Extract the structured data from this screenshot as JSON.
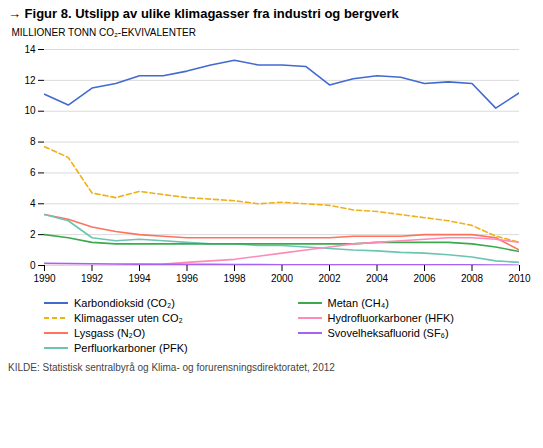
{
  "chart_data": {
    "type": "line",
    "title": "→ Figur 8. Utslipp av ulike klimagasser fra industri og bergverk",
    "ylabel": "MILLIONER TONN CO₂-EKVIVALENTER",
    "source": "KILDE: Statistisk sentralbyrå og Klima- og forurensningsdirektoratet, 2012",
    "x": [
      1990,
      1991,
      1992,
      1993,
      1994,
      1995,
      1996,
      1997,
      1998,
      1999,
      2000,
      2001,
      2002,
      2003,
      2004,
      2005,
      2006,
      2007,
      2008,
      2009,
      2010
    ],
    "series": [
      {
        "name": "Karbondioksid (CO₂)",
        "line_style": "solid",
        "values": [
          11.1,
          10.4,
          11.5,
          11.8,
          12.3,
          12.3,
          12.6,
          13.0,
          13.3,
          13.0,
          13.0,
          12.9,
          11.7,
          12.1,
          12.3,
          12.2,
          11.8,
          11.9,
          11.8,
          10.2,
          11.2
        ]
      },
      {
        "name": "Klimagasser uten CO₂",
        "line_style": "dashed",
        "values": [
          7.7,
          7.0,
          4.7,
          4.4,
          4.8,
          4.6,
          4.4,
          4.3,
          4.2,
          4.0,
          4.1,
          4.0,
          3.9,
          3.6,
          3.5,
          3.3,
          3.1,
          2.9,
          2.6,
          1.9,
          1.5
        ]
      },
      {
        "name": "Lysgass (N₂O)",
        "line_style": "solid",
        "values": [
          3.3,
          3.0,
          2.5,
          2.2,
          2.0,
          1.9,
          1.8,
          1.8,
          1.8,
          1.8,
          1.8,
          1.8,
          1.8,
          1.9,
          1.9,
          1.9,
          2.0,
          2.0,
          2.0,
          1.8,
          1.0
        ]
      },
      {
        "name": "Perfluorkarboner (PFK)",
        "line_style": "solid",
        "values": [
          3.3,
          2.9,
          1.8,
          1.6,
          1.7,
          1.6,
          1.5,
          1.4,
          1.4,
          1.3,
          1.3,
          1.2,
          1.1,
          1.0,
          0.95,
          0.85,
          0.8,
          0.7,
          0.55,
          0.3,
          0.2
        ]
      },
      {
        "name": "Metan (CH₄)",
        "line_style": "solid",
        "values": [
          2.0,
          1.8,
          1.5,
          1.4,
          1.4,
          1.4,
          1.4,
          1.4,
          1.4,
          1.4,
          1.4,
          1.4,
          1.4,
          1.4,
          1.5,
          1.5,
          1.5,
          1.5,
          1.4,
          1.2,
          0.9
        ]
      },
      {
        "name": "Hydrofluorkarboner (HFK)",
        "line_style": "solid",
        "values": [
          0.0,
          0.0,
          0.0,
          0.0,
          0.05,
          0.1,
          0.2,
          0.3,
          0.4,
          0.6,
          0.8,
          1.0,
          1.2,
          1.4,
          1.5,
          1.6,
          1.7,
          1.8,
          1.8,
          1.7,
          1.5
        ]
      },
      {
        "name": "Svovelheksafluorid (SF₆)",
        "line_style": "solid",
        "values": [
          0.15,
          0.13,
          0.11,
          0.1,
          0.09,
          0.08,
          0.07,
          0.07,
          0.06,
          0.06,
          0.05,
          0.05,
          0.05,
          0.05,
          0.05,
          0.05,
          0.04,
          0.04,
          0.04,
          0.03,
          0.02
        ]
      }
    ],
    "xlim": [
      1990,
      2010
    ],
    "xticks": [
      1990,
      1992,
      1994,
      1996,
      1998,
      2000,
      2002,
      2004,
      2006,
      2008,
      2010
    ],
    "ylim": [
      0,
      14
    ],
    "yticks": [
      0,
      2,
      4,
      6,
      8,
      10,
      12,
      14
    ],
    "grid": true,
    "legend": "bottom"
  }
}
